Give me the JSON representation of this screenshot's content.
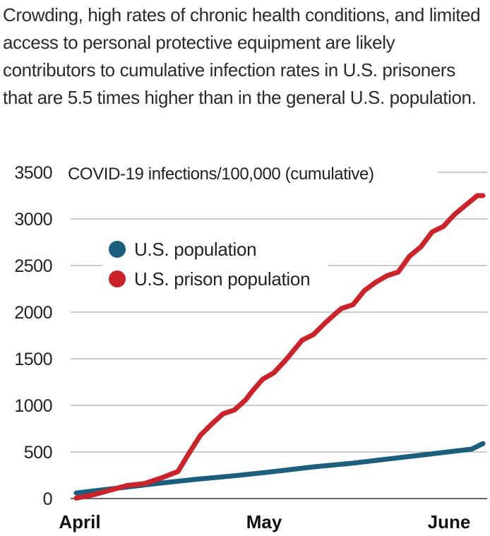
{
  "caption": "Crowding, high rates of chronic health conditions, and limited access to personal protective equipment are likely contributors to cumulative infection rates in U.S. prisoners that are 5.5 times higher than in the general U.S. population.",
  "chart_data": {
    "type": "line",
    "title": "",
    "ylabel": "COVID-19 infections/100,000 (cumulative)",
    "xlabel": "",
    "ylim": [
      0,
      3500
    ],
    "yticks": [
      "0",
      "500",
      "1000",
      "1500",
      "2000",
      "2500",
      "3000",
      "3500"
    ],
    "xticks": [
      "April",
      "May",
      "June"
    ],
    "grid": "horizontal",
    "legend_position": "upper-left",
    "x_unit": "days since April 1",
    "series": [
      {
        "name": "U.S. population",
        "color": "#1b5e7e",
        "x": [
          0,
          7,
          14,
          21,
          28,
          35,
          42,
          49,
          56,
          63,
          70,
          72
        ],
        "y": [
          60,
          110,
          160,
          205,
          245,
          290,
          340,
          380,
          430,
          480,
          530,
          590
        ]
      },
      {
        "name": "U.S. prison population",
        "color": "#cc2229",
        "x": [
          0,
          3,
          6,
          9,
          12,
          15,
          18,
          20,
          22,
          24,
          26,
          28,
          30,
          31,
          33,
          35,
          37,
          40,
          42,
          44,
          46,
          47,
          49,
          51,
          53,
          55,
          57,
          59,
          61,
          63,
          65,
          67,
          69,
          71,
          72
        ],
        "y": [
          5,
          40,
          90,
          140,
          160,
          220,
          290,
          490,
          680,
          800,
          910,
          950,
          1060,
          1140,
          1280,
          1350,
          1480,
          1700,
          1760,
          1880,
          1990,
          2040,
          2080,
          2230,
          2320,
          2390,
          2430,
          2600,
          2700,
          2860,
          2920,
          3050,
          3150,
          3250,
          3250
        ]
      }
    ]
  }
}
